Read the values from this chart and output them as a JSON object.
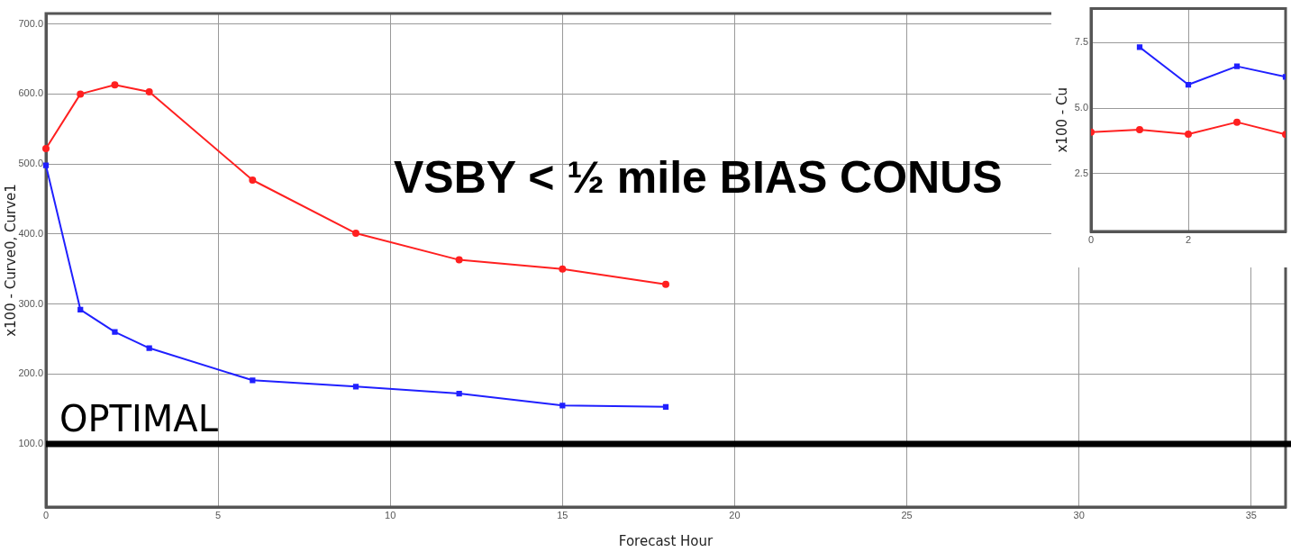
{
  "chart_data": [
    {
      "type": "line",
      "title": "VSBY < ½ mile  BIAS CONUS",
      "xlabel": "Forecast Hour",
      "ylabel": "x100 - Curve0, Curve1",
      "x": [
        0,
        1,
        2,
        3,
        6,
        9,
        12,
        15,
        18
      ],
      "series": [
        {
          "color": "#ff2020",
          "marker": "circle",
          "values": [
            522,
            600,
            613,
            603,
            477,
            401,
            363,
            350,
            328
          ]
        },
        {
          "color": "#2020ff",
          "marker": "square",
          "values": [
            498,
            292,
            260,
            237,
            191,
            182,
            172,
            155,
            153
          ]
        }
      ],
      "xlim": [
        0,
        36
      ],
      "ylim": [
        10,
        715
      ],
      "xticks": [
        0,
        5,
        10,
        15,
        20,
        25,
        30,
        35
      ],
      "yticks": [
        {
          "value": 100,
          "label": "100.0"
        },
        {
          "value": 200,
          "label": "200.0"
        },
        {
          "value": 300,
          "label": "300.0"
        },
        {
          "value": 400,
          "label": "400.0"
        },
        {
          "value": 500,
          "label": "500.0"
        },
        {
          "value": 600,
          "label": "600.0"
        },
        {
          "value": 700,
          "label": "700.0"
        }
      ],
      "ref_lines": [
        {
          "axis": "y",
          "value": 100,
          "label": "OPTIMAL",
          "color": "#000000"
        }
      ],
      "grid": true,
      "legend": false,
      "line_style": "solid"
    },
    {
      "type": "line",
      "ylabel": "x100 - Cu",
      "x": [
        0,
        1,
        2,
        3,
        4
      ],
      "series": [
        {
          "color": "#ff2020",
          "marker": "circle",
          "values": [
            4.09,
            4.18,
            4.01,
            4.47,
            4.0
          ]
        },
        {
          "color": "#2020ff",
          "marker": "square",
          "values": [
            null,
            7.33,
            5.9,
            6.6,
            6.2
          ]
        }
      ],
      "xlim": [
        0,
        4
      ],
      "ylim": [
        0.3,
        8.8
      ],
      "xticks": [
        0,
        2
      ],
      "yticks": [
        {
          "value": 2.5,
          "label": "2.5"
        },
        {
          "value": 5,
          "label": "5.0"
        },
        {
          "value": 7.5,
          "label": "7.5"
        }
      ],
      "grid": true,
      "legend": false,
      "line_style": "solid"
    }
  ]
}
